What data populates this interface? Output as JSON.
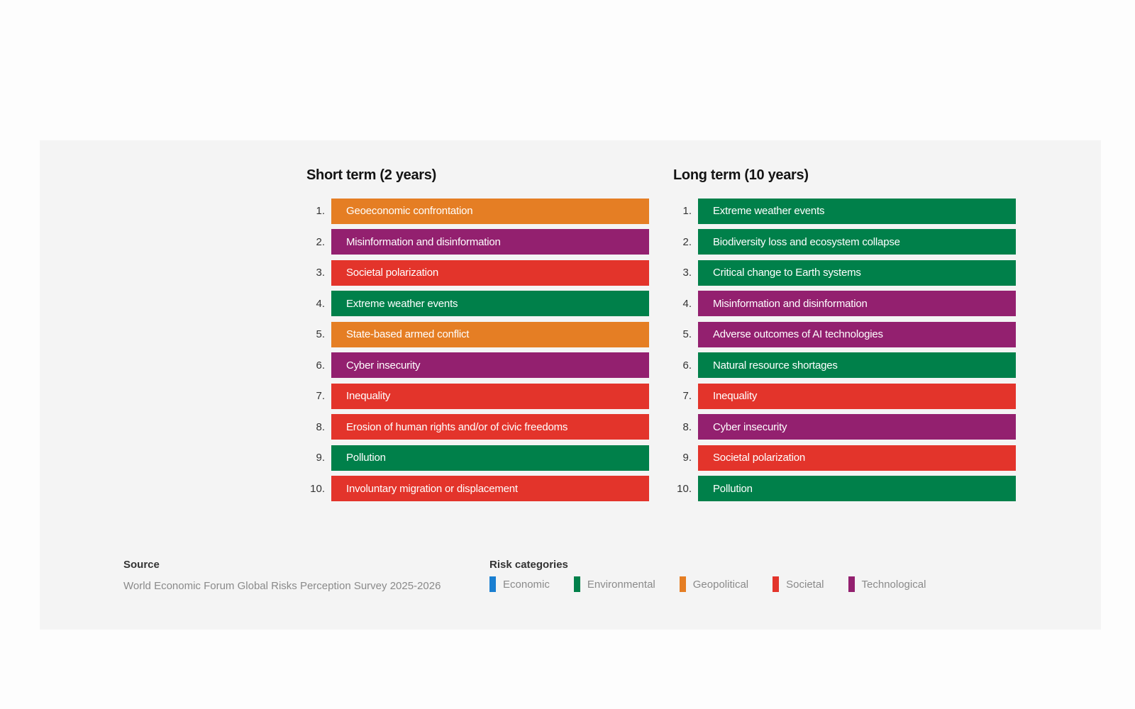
{
  "chart_data": {
    "type": "table",
    "columns": [
      {
        "title": "Short term (2 years)",
        "items": [
          {
            "rank": "1.",
            "label": "Geoeconomic confrontation",
            "category": "Geopolitical"
          },
          {
            "rank": "2.",
            "label": "Misinformation and disinformation",
            "category": "Technological"
          },
          {
            "rank": "3.",
            "label": "Societal polarization",
            "category": "Societal"
          },
          {
            "rank": "4.",
            "label": "Extreme weather events",
            "category": "Environmental"
          },
          {
            "rank": "5.",
            "label": "State-based armed conflict",
            "category": "Geopolitical"
          },
          {
            "rank": "6.",
            "label": "Cyber insecurity",
            "category": "Technological"
          },
          {
            "rank": "7.",
            "label": "Inequality",
            "category": "Societal"
          },
          {
            "rank": "8.",
            "label": "Erosion of human rights and/or of civic freedoms",
            "category": "Societal"
          },
          {
            "rank": "9.",
            "label": "Pollution",
            "category": "Environmental"
          },
          {
            "rank": "10.",
            "label": "Involuntary migration or displacement",
            "category": "Societal"
          }
        ]
      },
      {
        "title": "Long term (10 years)",
        "items": [
          {
            "rank": "1.",
            "label": "Extreme weather events",
            "category": "Environmental"
          },
          {
            "rank": "2.",
            "label": "Biodiversity loss and ecosystem collapse",
            "category": "Environmental"
          },
          {
            "rank": "3.",
            "label": "Critical change to Earth systems",
            "category": "Environmental"
          },
          {
            "rank": "4.",
            "label": "Misinformation and disinformation",
            "category": "Technological"
          },
          {
            "rank": "5.",
            "label": "Adverse outcomes of AI technologies",
            "category": "Technological"
          },
          {
            "rank": "6.",
            "label": "Natural resource shortages",
            "category": "Environmental"
          },
          {
            "rank": "7.",
            "label": "Inequality",
            "category": "Societal"
          },
          {
            "rank": "8.",
            "label": "Cyber insecurity",
            "category": "Technological"
          },
          {
            "rank": "9.",
            "label": "Societal polarization",
            "category": "Societal"
          },
          {
            "rank": "10.",
            "label": "Pollution",
            "category": "Environmental"
          }
        ]
      }
    ]
  },
  "categories": [
    {
      "name": "Economic",
      "color": "#1a7fd1"
    },
    {
      "name": "Environmental",
      "color": "#00804a"
    },
    {
      "name": "Geopolitical",
      "color": "#e57e24"
    },
    {
      "name": "Societal",
      "color": "#e3342b"
    },
    {
      "name": "Technological",
      "color": "#93206f"
    }
  ],
  "footer": {
    "source_title": "Source",
    "source_text": "World Economic Forum Global Risks Perception Survey 2025-2026",
    "legend_title": "Risk categories"
  }
}
